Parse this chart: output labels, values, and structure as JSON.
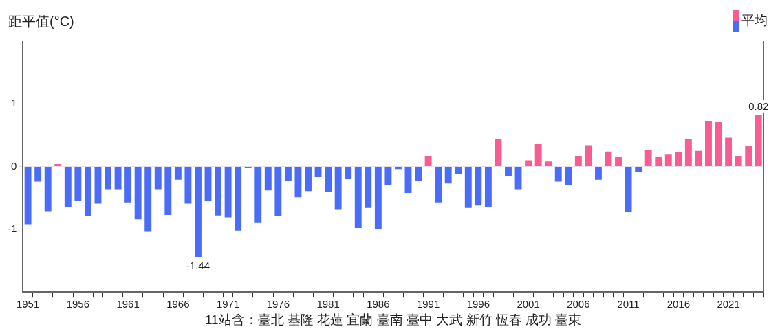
{
  "chart_data": {
    "type": "bar",
    "ylabel": "距平值(°C)",
    "xlabel": "11站含：臺北 基隆 花蓮 宜蘭 臺南 臺中 大武 新竹 恆春 成功 臺東",
    "categories": [
      "1951",
      null,
      null,
      null,
      null,
      "1956",
      null,
      null,
      null,
      null,
      "1961",
      null,
      null,
      null,
      null,
      "1966",
      null,
      null,
      null,
      null,
      "1971",
      null,
      null,
      null,
      null,
      "1976",
      null,
      null,
      null,
      null,
      "1981",
      null,
      null,
      null,
      null,
      "1986",
      null,
      null,
      null,
      null,
      "1991",
      null,
      null,
      null,
      null,
      "1996",
      null,
      null,
      null,
      null,
      "2001",
      null,
      null,
      null,
      null,
      "2006",
      null,
      null,
      null,
      null,
      "2011",
      null,
      null,
      null,
      null,
      "2016",
      null,
      null,
      null,
      null,
      "2021",
      null,
      null,
      null
    ],
    "series": [
      {
        "name": "平均",
        "values": [
          -0.92,
          -0.24,
          -0.71,
          0.04,
          -0.64,
          -0.54,
          -0.79,
          -0.59,
          -0.36,
          -0.36,
          -0.57,
          -0.84,
          -1.04,
          -0.36,
          -0.77,
          -0.21,
          -0.59,
          -1.44,
          -0.54,
          -0.78,
          -0.81,
          -1.02,
          -0.02,
          -0.9,
          -0.38,
          -0.79,
          -0.23,
          -0.49,
          -0.39,
          -0.17,
          -0.4,
          -0.69,
          -0.2,
          -0.98,
          -0.66,
          -1.0,
          -0.3,
          -0.04,
          -0.42,
          -0.23,
          0.17,
          -0.57,
          -0.27,
          -0.12,
          -0.66,
          -0.62,
          -0.64,
          0.44,
          -0.15,
          -0.36,
          0.1,
          0.36,
          0.08,
          -0.24,
          -0.29,
          0.17,
          0.34,
          -0.21,
          0.24,
          0.16,
          -0.72,
          -0.08,
          0.26,
          0.16,
          0.2,
          0.23,
          0.44,
          0.25,
          0.73,
          0.71,
          0.46,
          0.17,
          0.33,
          0.82
        ],
        "colors": [
          "#4a6cf7",
          "#4a6cf7",
          "#4a6cf7",
          "#f75c93",
          "#4a6cf7",
          "#4a6cf7",
          "#4a6cf7",
          "#4a6cf7",
          "#4a6cf7",
          "#4a6cf7",
          "#4a6cf7",
          "#4a6cf7",
          "#4a6cf7",
          "#4a6cf7",
          "#4a6cf7",
          "#4a6cf7",
          "#4a6cf7",
          "#4a6cf7",
          "#4a6cf7",
          "#4a6cf7",
          "#4a6cf7",
          "#4a6cf7",
          "#4a6cf7",
          "#4a6cf7",
          "#4a6cf7",
          "#4a6cf7",
          "#4a6cf7",
          "#4a6cf7",
          "#4a6cf7",
          "#4a6cf7",
          "#4a6cf7",
          "#4a6cf7",
          "#4a6cf7",
          "#4a6cf7",
          "#4a6cf7",
          "#4a6cf7",
          "#4a6cf7",
          "#4a6cf7",
          "#4a6cf7",
          "#4a6cf7",
          "#f75c93",
          "#4a6cf7",
          "#4a6cf7",
          "#4a6cf7",
          "#4a6cf7",
          "#4a6cf7",
          "#4a6cf7",
          "#f75c93",
          "#4a6cf7",
          "#4a6cf7",
          "#f75c93",
          "#f75c93",
          "#f75c93",
          "#4a6cf7",
          "#4a6cf7",
          "#f75c93",
          "#f75c93",
          "#4a6cf7",
          "#f75c93",
          "#f75c93",
          "#4a6cf7",
          "#4a6cf7",
          "#f75c93",
          "#f75c93",
          "#f75c93",
          "#f75c93",
          "#f75c93",
          "#f75c93",
          "#f75c93",
          "#f75c93",
          "#f75c93",
          "#f75c93",
          "#f75c93",
          "#f75c93"
        ],
        "value_labels": [
          null,
          null,
          null,
          null,
          null,
          null,
          null,
          null,
          null,
          null,
          null,
          null,
          null,
          null,
          null,
          null,
          null,
          "-1.44",
          null,
          null,
          null,
          null,
          null,
          null,
          null,
          null,
          null,
          null,
          null,
          null,
          null,
          null,
          null,
          null,
          null,
          null,
          null,
          null,
          null,
          null,
          null,
          null,
          null,
          null,
          null,
          null,
          null,
          null,
          null,
          null,
          null,
          null,
          null,
          null,
          null,
          null,
          null,
          null,
          null,
          null,
          null,
          null,
          null,
          null,
          null,
          null,
          null,
          null,
          null,
          null,
          null,
          null,
          null,
          "0.82"
        ]
      }
    ],
    "ylim": [
      -2,
      2
    ],
    "yticks": [
      -1,
      0,
      1
    ],
    "grid": "y",
    "legend": "top right"
  }
}
